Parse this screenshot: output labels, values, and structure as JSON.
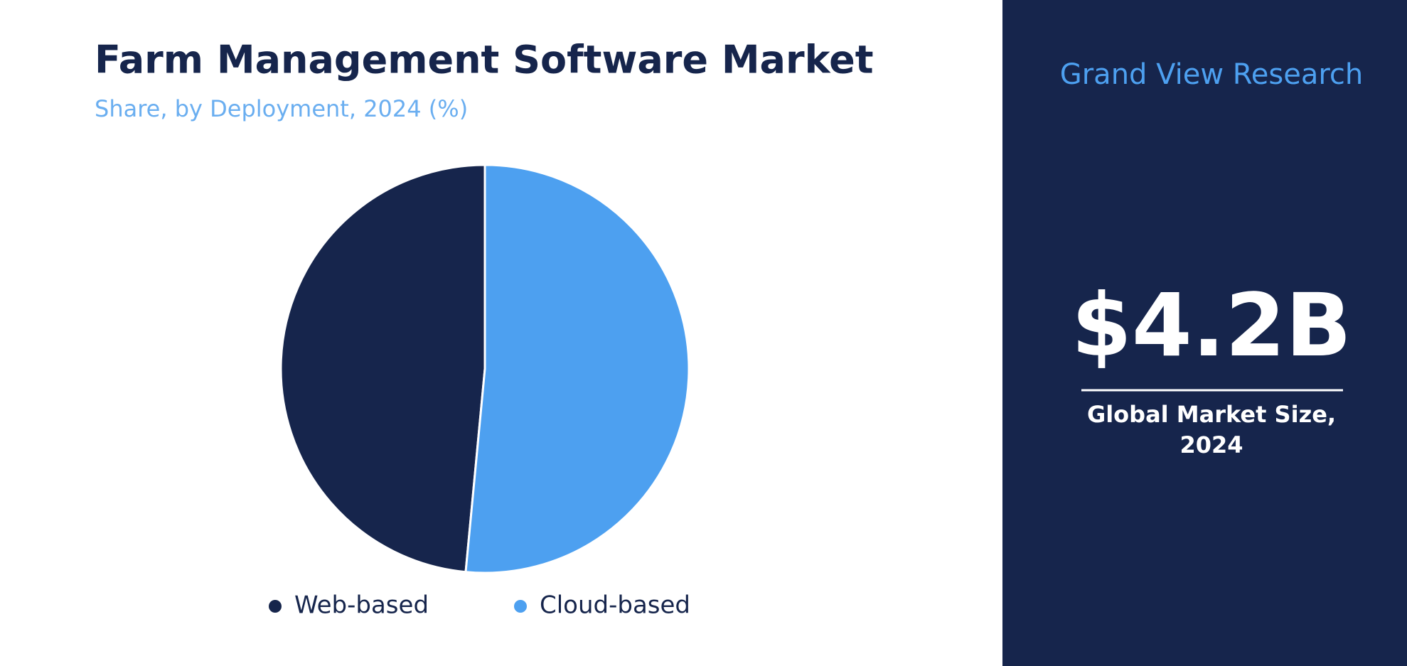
{
  "chart_data": {
    "type": "pie",
    "title": "Farm Management Software Market",
    "subtitle": "Share, by Deployment, 2024 (%)",
    "categories": [
      "Web-based",
      "Cloud-based"
    ],
    "values": [
      48.5,
      51.5
    ],
    "colors": [
      "#16254c",
      "#4da0f0"
    ],
    "legend": "bottom"
  },
  "side_panel": {
    "brand": "Grand View Research",
    "value": "$4.2B",
    "caption": [
      "Global Market Size,",
      "2024"
    ]
  }
}
